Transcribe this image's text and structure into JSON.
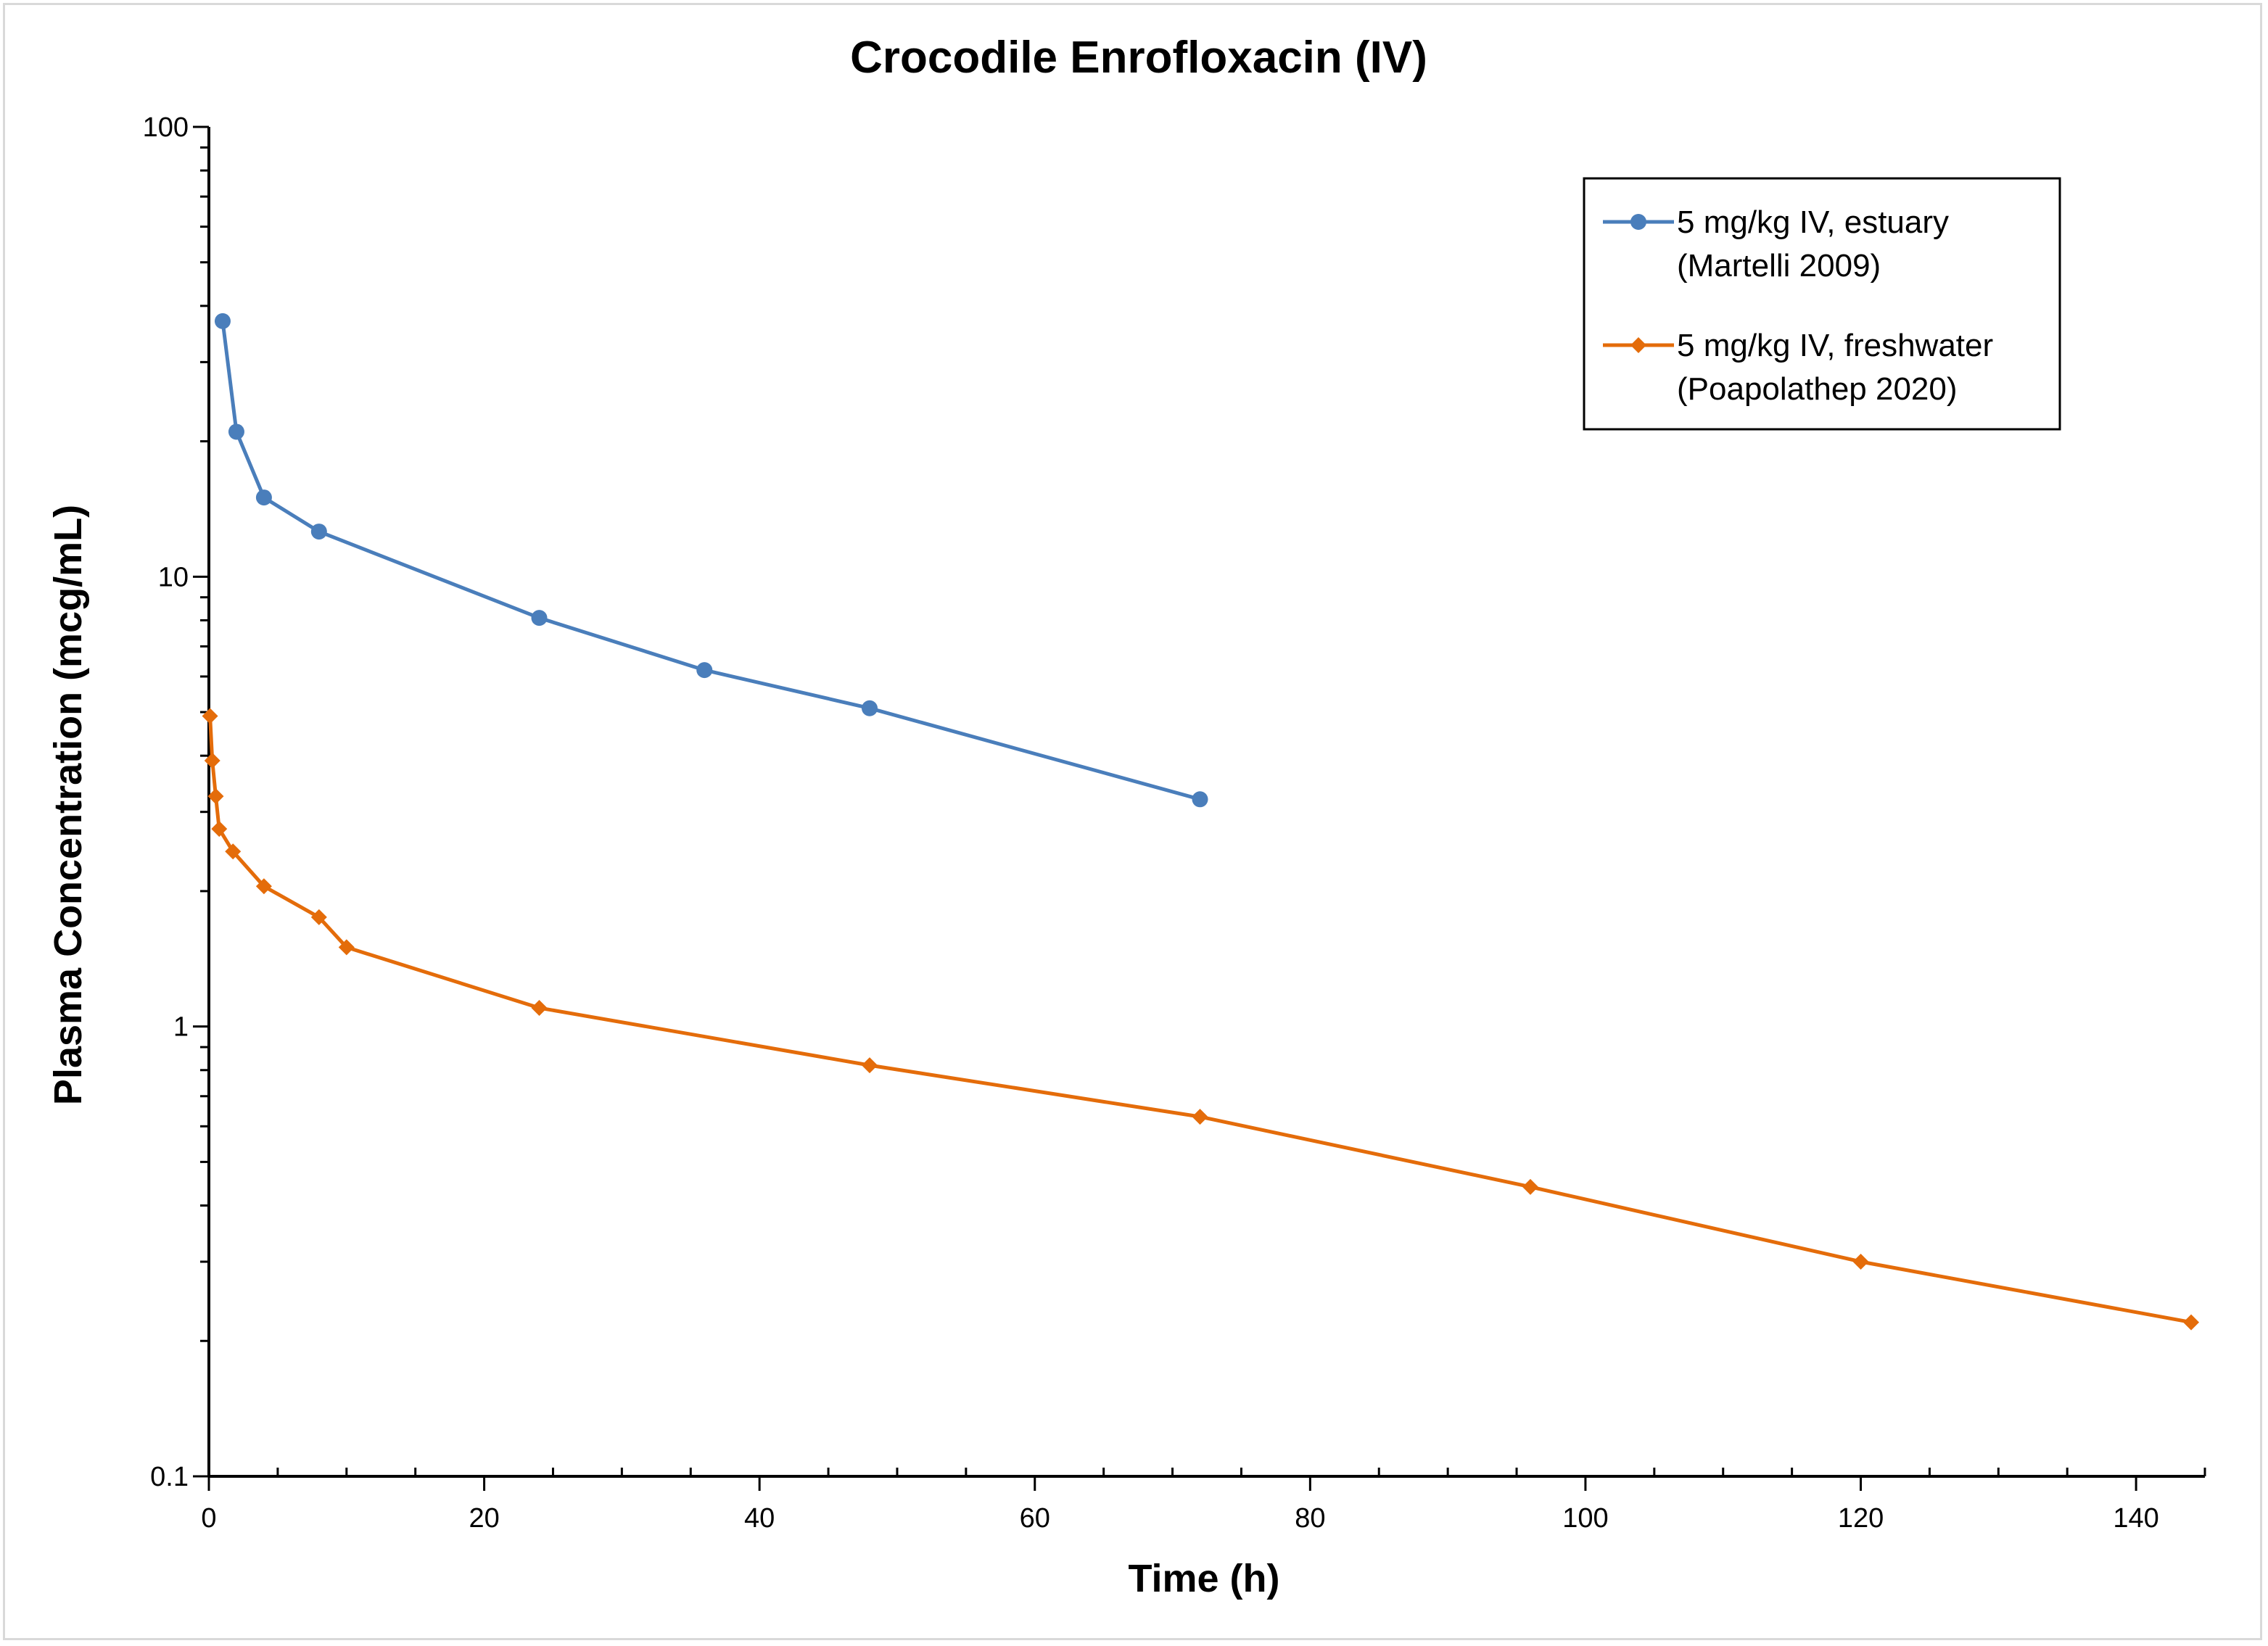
{
  "chart_data": {
    "type": "line",
    "title": "Crocodile Enrofloxacin (IV)",
    "xlabel": "Time (h)",
    "ylabel": "Plasma Concentration (mcg/mL)",
    "xlim": [
      0,
      145
    ],
    "ylim": [
      0.1,
      100
    ],
    "yscale": "log",
    "x_ticks": [
      "0",
      "20",
      "40",
      "60",
      "80",
      "100",
      "120",
      "140"
    ],
    "y_ticks": [
      "0.1",
      "1",
      "10",
      "100"
    ],
    "grid": false,
    "legend_position": "top-right",
    "series": [
      {
        "name": "5 mg/kg IV, estuary",
        "name_line2": "(Martelli 2009)",
        "color": "#4a7ebb",
        "marker": "circle",
        "x": [
          1,
          2,
          4,
          8,
          24,
          36,
          48,
          72
        ],
        "y": [
          37,
          21,
          15,
          12.6,
          8.1,
          6.2,
          5.1,
          3.2
        ]
      },
      {
        "name": "5 mg/kg IV, freshwater",
        "name_line2": "(Poapolathep 2020)",
        "color": "#e46c0a",
        "marker": "diamond",
        "x": [
          0.083,
          0.25,
          0.5,
          0.75,
          1.75,
          4,
          8,
          10,
          24,
          48,
          72,
          96,
          120,
          144
        ],
        "y": [
          4.9,
          3.9,
          3.25,
          2.75,
          2.45,
          2.05,
          1.75,
          1.5,
          1.1,
          0.82,
          0.63,
          0.44,
          0.3,
          0.22
        ]
      }
    ]
  }
}
